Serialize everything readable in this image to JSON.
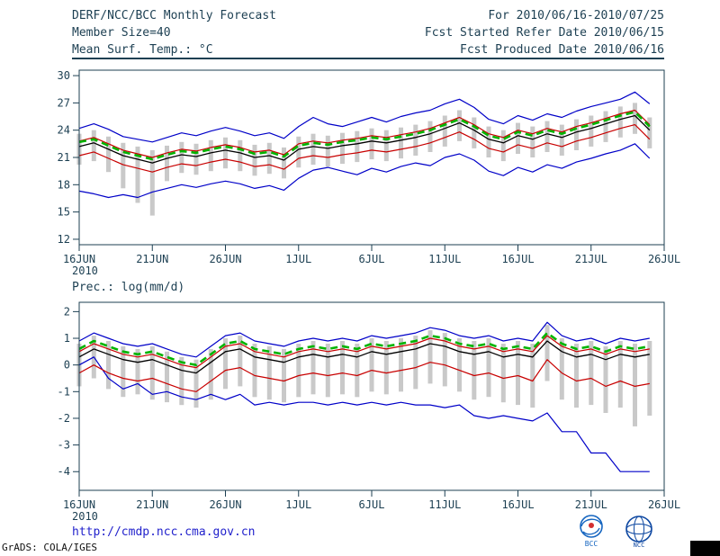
{
  "header": {
    "title": "DERF/NCC/BCC Monthly Forecast",
    "member_size": "Member Size=40",
    "panel1_label": "Mean Surf. Temp.: °C",
    "for_range": "For 2010/06/16-2010/07/25",
    "refer_date": "Fcst Started Refer Date 2010/06/15",
    "produced_date": "Fcst Produced Date 2010/06/16"
  },
  "labels": {
    "panel2": "Prec.: log(mm/d)"
  },
  "footer": {
    "url": "http://cmdp.ncc.cma.gov.cn",
    "credit": "GrADS: COLA/IGES",
    "logo_bcc": "BCC",
    "logo_ncc": "NCC"
  },
  "colors": {
    "axis_text": "#1c3f52",
    "envelope_blue": "#0000c8",
    "spread_red": "#c80000",
    "median_black": "#000000",
    "mean_green": "#00b400",
    "bar_gray": "#c9c9c9",
    "link_blue": "#2222cc"
  },
  "chart_data": [
    {
      "type": "line",
      "title": "Mean Surf. Temp.: °C",
      "n_points": 40,
      "x_start": "16JUN2010",
      "x_end": "25JUL2010",
      "x_tick_labels": [
        "16JUN",
        "21JUN",
        "26JUN",
        "1JUL",
        "6JUL",
        "11JUL",
        "16JUL",
        "21JUL",
        "26JUL"
      ],
      "x_tick_positions": [
        0,
        5,
        10,
        15,
        20,
        25,
        30,
        35,
        40
      ],
      "x_axis_units": 40,
      "year_label": "2010",
      "ylim": [
        12,
        30
      ],
      "frame_ylim": [
        11.4,
        30.6
      ],
      "y_ticks": [
        12,
        15,
        18,
        21,
        24,
        27,
        30
      ],
      "grid": false,
      "legend": false,
      "bars": {
        "name": "ensemble-spread",
        "color": "#c9c9c9",
        "hi": [
          23.6,
          24.0,
          23.3,
          22.6,
          22.2,
          21.8,
          22.3,
          22.7,
          22.5,
          22.9,
          23.2,
          22.9,
          22.4,
          22.6,
          22.1,
          23.3,
          23.6,
          23.4,
          23.7,
          23.9,
          24.2,
          24.0,
          24.3,
          24.6,
          25.0,
          25.6,
          26.2,
          25.4,
          24.4,
          24.0,
          24.8,
          24.4,
          25.0,
          24.6,
          25.2,
          25.6,
          26.1,
          26.6,
          27.0,
          25.4
        ],
        "lo": [
          20.2,
          20.6,
          19.4,
          17.6,
          16.0,
          14.6,
          18.4,
          19.3,
          19.1,
          19.5,
          19.8,
          19.5,
          19.0,
          19.2,
          18.7,
          19.9,
          20.2,
          20.0,
          20.3,
          20.5,
          20.8,
          20.6,
          20.9,
          21.2,
          21.6,
          22.2,
          22.8,
          22.0,
          21.0,
          20.6,
          21.4,
          21.0,
          21.6,
          21.2,
          21.8,
          22.2,
          22.7,
          23.2,
          23.6,
          22.0
        ]
      },
      "series": [
        {
          "name": "ensemble-max",
          "color": "#0000c8",
          "width": 1.2,
          "values": [
            24.2,
            24.7,
            24.1,
            23.3,
            23.0,
            22.7,
            23.2,
            23.7,
            23.4,
            23.9,
            24.3,
            23.9,
            23.4,
            23.7,
            23.1,
            24.4,
            25.4,
            24.7,
            24.4,
            24.9,
            25.4,
            24.9,
            25.5,
            25.9,
            26.2,
            26.9,
            27.4,
            26.5,
            25.2,
            24.7,
            25.6,
            25.1,
            25.8,
            25.4,
            26.1,
            26.6,
            27.0,
            27.4,
            28.2,
            26.9
          ]
        },
        {
          "name": "ensemble-min",
          "color": "#0000c8",
          "width": 1.2,
          "values": [
            17.3,
            17.0,
            16.6,
            16.9,
            16.6,
            17.2,
            17.6,
            18.0,
            17.7,
            18.1,
            18.4,
            18.1,
            17.6,
            17.9,
            17.4,
            18.7,
            19.6,
            19.9,
            19.5,
            19.1,
            19.8,
            19.4,
            20.0,
            20.4,
            20.1,
            21.0,
            21.4,
            20.7,
            19.5,
            19.0,
            19.9,
            19.4,
            20.2,
            19.8,
            20.5,
            20.9,
            21.4,
            21.8,
            22.5,
            20.9
          ]
        },
        {
          "name": "upper-spread",
          "color": "#c80000",
          "width": 1.2,
          "values": [
            22.8,
            23.2,
            22.5,
            21.8,
            21.4,
            21.0,
            21.5,
            21.9,
            21.7,
            22.1,
            22.4,
            22.1,
            21.6,
            21.8,
            21.3,
            22.5,
            22.8,
            22.6,
            22.9,
            23.1,
            23.4,
            23.2,
            23.5,
            23.8,
            24.2,
            24.8,
            25.4,
            24.6,
            23.6,
            23.2,
            24.0,
            23.6,
            24.2,
            23.8,
            24.4,
            24.8,
            25.3,
            25.8,
            26.2,
            24.6
          ]
        },
        {
          "name": "lower-spread",
          "color": "#c80000",
          "width": 1.2,
          "values": [
            21.2,
            21.6,
            20.9,
            20.2,
            19.8,
            19.4,
            19.9,
            20.3,
            20.1,
            20.5,
            20.8,
            20.5,
            20.0,
            20.2,
            19.7,
            20.9,
            21.2,
            21.0,
            21.3,
            21.5,
            21.8,
            21.6,
            21.9,
            22.2,
            22.6,
            23.2,
            23.8,
            23.0,
            22.0,
            21.6,
            22.4,
            22.0,
            22.6,
            22.2,
            22.8,
            23.2,
            23.7,
            24.2,
            24.6,
            23.0
          ]
        },
        {
          "name": "ensemble-median",
          "color": "#000000",
          "width": 1.3,
          "values": [
            22.2,
            22.6,
            21.9,
            21.2,
            20.8,
            20.4,
            20.9,
            21.3,
            21.1,
            21.5,
            21.8,
            21.5,
            21.0,
            21.2,
            20.7,
            21.9,
            22.2,
            22.0,
            22.3,
            22.5,
            22.8,
            22.6,
            22.9,
            23.2,
            23.6,
            24.2,
            24.8,
            24.0,
            23.0,
            22.6,
            23.4,
            23.0,
            23.6,
            23.2,
            23.8,
            24.2,
            24.7,
            25.2,
            25.6,
            24.0
          ]
        },
        {
          "name": "ensemble-mean",
          "color": "#00b400",
          "width": 2.6,
          "dashed": true,
          "values": [
            22.7,
            23.0,
            22.3,
            21.6,
            21.2,
            20.8,
            21.3,
            21.7,
            21.5,
            21.9,
            22.2,
            21.9,
            21.4,
            21.6,
            21.1,
            22.3,
            22.6,
            22.4,
            22.7,
            22.9,
            23.2,
            23.0,
            23.3,
            23.6,
            24.0,
            24.6,
            25.2,
            24.4,
            23.4,
            23.0,
            23.8,
            23.4,
            24.0,
            23.6,
            24.2,
            24.6,
            25.1,
            25.6,
            26.0,
            24.4
          ]
        }
      ]
    },
    {
      "type": "line",
      "title": "Prec.: log(mm/d)",
      "n_points": 40,
      "x_start": "16JUN2010",
      "x_end": "25JUL2010",
      "x_tick_labels": [
        "16JUN",
        "21JUN",
        "26JUN",
        "1JUL",
        "6JUL",
        "11JUL",
        "16JUL",
        "21JUL",
        "26JUL"
      ],
      "x_tick_positions": [
        0,
        5,
        10,
        15,
        20,
        25,
        30,
        35,
        40
      ],
      "x_axis_units": 40,
      "year_label": "2010",
      "ylim": [
        -4,
        2
      ],
      "frame_ylim": [
        -4.7,
        2.35
      ],
      "y_ticks": [
        -4,
        -3,
        -2,
        -1,
        0,
        1,
        2
      ],
      "grid": false,
      "legend": false,
      "bars": {
        "name": "ensemble-spread",
        "color": "#c9c9c9",
        "hi": [
          0.8,
          1.1,
          0.9,
          0.7,
          0.6,
          0.7,
          0.5,
          0.3,
          0.2,
          0.6,
          1.0,
          1.1,
          0.8,
          0.7,
          0.6,
          0.8,
          0.9,
          0.8,
          0.9,
          0.8,
          1.0,
          0.9,
          1.0,
          1.1,
          1.3,
          1.2,
          1.0,
          0.9,
          1.0,
          0.8,
          0.9,
          0.8,
          1.5,
          1.0,
          0.8,
          0.9,
          0.7,
          0.9,
          0.8,
          0.9
        ],
        "lo": [
          -0.8,
          -0.5,
          -0.9,
          -1.2,
          -1.1,
          -1.3,
          -1.4,
          -1.5,
          -1.6,
          -1.3,
          -0.9,
          -0.8,
          -1.2,
          -1.3,
          -1.4,
          -1.2,
          -1.1,
          -1.2,
          -1.1,
          -1.2,
          -1.0,
          -1.1,
          -1.0,
          -0.9,
          -0.7,
          -0.8,
          -1.0,
          -1.3,
          -1.2,
          -1.4,
          -1.5,
          -1.6,
          -0.6,
          -1.3,
          -1.6,
          -1.5,
          -1.8,
          -1.6,
          -2.3,
          -1.9
        ]
      },
      "series": [
        {
          "name": "ensemble-max",
          "color": "#0000c8",
          "width": 1.2,
          "values": [
            0.9,
            1.2,
            1.0,
            0.8,
            0.7,
            0.8,
            0.6,
            0.4,
            0.3,
            0.7,
            1.1,
            1.2,
            0.9,
            0.8,
            0.7,
            0.9,
            1.0,
            0.9,
            1.0,
            0.9,
            1.1,
            1.0,
            1.1,
            1.2,
            1.4,
            1.3,
            1.1,
            1.0,
            1.1,
            0.9,
            1.0,
            0.9,
            1.6,
            1.1,
            0.9,
            1.0,
            0.8,
            1.0,
            0.9,
            1.0
          ]
        },
        {
          "name": "ensemble-min",
          "color": "#0000c8",
          "width": 1.2,
          "values": [
            0.0,
            0.3,
            -0.5,
            -0.9,
            -0.7,
            -1.1,
            -1.0,
            -1.2,
            -1.3,
            -1.1,
            -1.3,
            -1.1,
            -1.5,
            -1.4,
            -1.5,
            -1.4,
            -1.4,
            -1.5,
            -1.4,
            -1.5,
            -1.4,
            -1.5,
            -1.4,
            -1.5,
            -1.5,
            -1.6,
            -1.5,
            -1.9,
            -2.0,
            -1.9,
            -2.0,
            -2.1,
            -1.8,
            -2.5,
            -2.5,
            -3.3,
            -3.3,
            -4.0,
            -4.0,
            -4.0
          ]
        },
        {
          "name": "upper-spread",
          "color": "#c80000",
          "width": 1.2,
          "values": [
            0.5,
            0.8,
            0.6,
            0.4,
            0.3,
            0.4,
            0.2,
            0.0,
            -0.1,
            0.3,
            0.7,
            0.8,
            0.5,
            0.4,
            0.3,
            0.5,
            0.6,
            0.5,
            0.6,
            0.5,
            0.7,
            0.6,
            0.7,
            0.8,
            1.0,
            0.9,
            0.7,
            0.6,
            0.7,
            0.5,
            0.6,
            0.5,
            1.1,
            0.7,
            0.5,
            0.6,
            0.4,
            0.6,
            0.5,
            0.6
          ]
        },
        {
          "name": "lower-spread",
          "color": "#c80000",
          "width": 1.2,
          "values": [
            -0.3,
            0.0,
            -0.3,
            -0.5,
            -0.6,
            -0.5,
            -0.7,
            -0.9,
            -1.0,
            -0.6,
            -0.2,
            -0.1,
            -0.4,
            -0.5,
            -0.6,
            -0.4,
            -0.3,
            -0.4,
            -0.3,
            -0.4,
            -0.2,
            -0.3,
            -0.2,
            -0.1,
            0.1,
            0.0,
            -0.2,
            -0.4,
            -0.3,
            -0.5,
            -0.4,
            -0.6,
            0.2,
            -0.3,
            -0.6,
            -0.5,
            -0.8,
            -0.6,
            -0.8,
            -0.7
          ]
        },
        {
          "name": "ensemble-median",
          "color": "#000000",
          "width": 1.3,
          "values": [
            0.3,
            0.6,
            0.4,
            0.2,
            0.1,
            0.2,
            0.0,
            -0.2,
            -0.3,
            0.1,
            0.5,
            0.6,
            0.3,
            0.2,
            0.1,
            0.3,
            0.4,
            0.3,
            0.4,
            0.3,
            0.5,
            0.4,
            0.5,
            0.6,
            0.8,
            0.7,
            0.5,
            0.4,
            0.5,
            0.3,
            0.4,
            0.3,
            0.9,
            0.5,
            0.3,
            0.4,
            0.2,
            0.4,
            0.3,
            0.4
          ]
        },
        {
          "name": "ensemble-mean",
          "color": "#00b400",
          "width": 2.6,
          "dashed": true,
          "values": [
            0.6,
            0.9,
            0.7,
            0.5,
            0.4,
            0.5,
            0.3,
            0.1,
            0.0,
            0.4,
            0.8,
            0.9,
            0.6,
            0.5,
            0.4,
            0.6,
            0.7,
            0.6,
            0.7,
            0.6,
            0.8,
            0.7,
            0.8,
            0.9,
            1.1,
            1.0,
            0.8,
            0.7,
            0.8,
            0.6,
            0.7,
            0.6,
            1.2,
            0.8,
            0.6,
            0.7,
            0.5,
            0.7,
            0.6,
            0.7
          ]
        }
      ]
    }
  ]
}
